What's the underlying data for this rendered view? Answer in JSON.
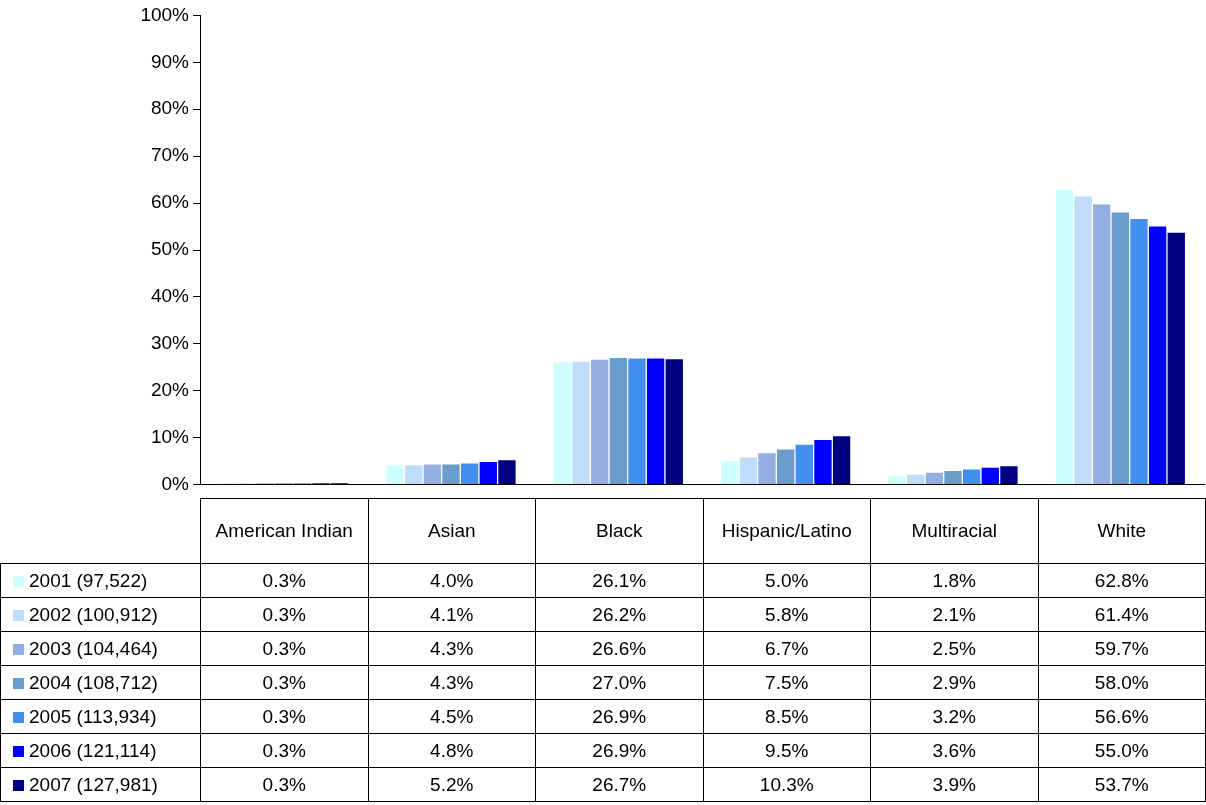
{
  "chart_data": {
    "type": "bar",
    "categories": [
      "American Indian",
      "Asian",
      "Black",
      "Hispanic/Latino",
      "Multiracial",
      "White"
    ],
    "series": [
      {
        "name": "2001 (97,522)",
        "color": "#ccffff",
        "values": [
          0.3,
          4.0,
          26.1,
          5.0,
          1.8,
          62.8
        ],
        "value_labels": [
          "0.3%",
          "4.0%",
          "26.1%",
          "5.0%",
          "1.8%",
          "62.8%"
        ]
      },
      {
        "name": "2002 (100,912)",
        "color": "#bfdcfb",
        "values": [
          0.3,
          4.1,
          26.2,
          5.8,
          2.1,
          61.4
        ],
        "value_labels": [
          "0.3%",
          "4.1%",
          "26.2%",
          "5.8%",
          "2.1%",
          "61.4%"
        ]
      },
      {
        "name": "2003 (104,464)",
        "color": "#95aee2",
        "values": [
          0.3,
          4.3,
          26.6,
          6.7,
          2.5,
          59.7
        ],
        "value_labels": [
          "0.3%",
          "4.3%",
          "26.6%",
          "6.7%",
          "2.5%",
          "59.7%"
        ]
      },
      {
        "name": "2004 (108,712)",
        "color": "#6a9cce",
        "values": [
          0.3,
          4.3,
          27.0,
          7.5,
          2.9,
          58.0
        ],
        "value_labels": [
          "0.3%",
          "4.3%",
          "27.0%",
          "7.5%",
          "2.9%",
          "58.0%"
        ]
      },
      {
        "name": "2005 (113,934)",
        "color": "#4190ef",
        "values": [
          0.3,
          4.5,
          26.9,
          8.5,
          3.2,
          56.6
        ],
        "value_labels": [
          "0.3%",
          "4.5%",
          "26.9%",
          "8.5%",
          "3.2%",
          "56.6%"
        ]
      },
      {
        "name": "2006 (121,114)",
        "color": "#0000ff",
        "values": [
          0.3,
          4.8,
          26.9,
          9.5,
          3.6,
          55.0
        ],
        "value_labels": [
          "0.3%",
          "4.8%",
          "26.9%",
          "9.5%",
          "3.6%",
          "55.0%"
        ]
      },
      {
        "name": "2007 (127,981)",
        "color": "#000080",
        "values": [
          0.3,
          5.2,
          26.7,
          10.3,
          3.9,
          53.7
        ],
        "value_labels": [
          "0.3%",
          "5.2%",
          "26.7%",
          "10.3%",
          "3.9%",
          "53.7%"
        ]
      }
    ],
    "ylim": [
      0,
      100
    ],
    "yticks": [
      {
        "value": 0,
        "label": "0%"
      },
      {
        "value": 10,
        "label": "10%"
      },
      {
        "value": 20,
        "label": "20%"
      },
      {
        "value": 30,
        "label": "30%"
      },
      {
        "value": 40,
        "label": "40%"
      },
      {
        "value": 50,
        "label": "50%"
      },
      {
        "value": 60,
        "label": "60%"
      },
      {
        "value": 70,
        "label": "70%"
      },
      {
        "value": 80,
        "label": "80%"
      },
      {
        "value": 90,
        "label": "90%"
      },
      {
        "value": 100,
        "label": "100%"
      }
    ],
    "grid": false,
    "legend": "bottom"
  }
}
